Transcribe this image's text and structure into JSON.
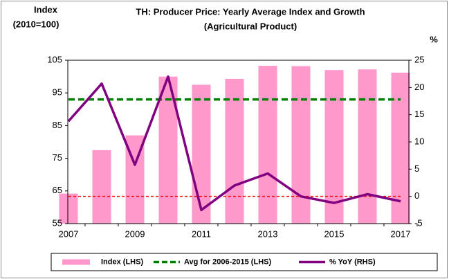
{
  "chart_data": {
    "type": "bar_line",
    "title": "TH: Producer Price: Yearly Average Index and Growth",
    "subtitle": "(Agricultural Product)",
    "y_label": [
      "Index",
      "(2010=100)"
    ],
    "y2_label": "%",
    "categories": [
      "2007",
      null,
      "2009",
      null,
      "2011",
      null,
      "2013",
      null,
      "2015",
      null,
      "2017"
    ],
    "series": [
      {
        "name": "Index (LHS)",
        "kind": "bar",
        "color": "#ff99cc",
        "axis": "y",
        "values": [
          64.2,
          77.5,
          82,
          100,
          97.5,
          99.3,
          103.3,
          103.2,
          102,
          102.2,
          101.2
        ]
      },
      {
        "name": "Avg for 2006-2015 (LHS)",
        "kind": "hline",
        "color": "#008000",
        "axis": "y",
        "value": 93
      },
      {
        "name": "% YoY (RHS)",
        "kind": "line",
        "color": "#800080",
        "axis": "y2",
        "values": [
          13.8,
          20.7,
          5.8,
          22,
          -2.5,
          2,
          4.2,
          0,
          -1.2,
          0.4,
          -0.9
        ]
      }
    ],
    "reference_line": {
      "axis": "y2",
      "value": 0,
      "color": "#ff0000"
    },
    "ylim": [
      55,
      105
    ],
    "yticks": [
      55,
      65,
      75,
      85,
      95,
      105
    ],
    "y2lim": [
      -5,
      25
    ],
    "y2ticks": [
      -5,
      0,
      5,
      10,
      15,
      20,
      25
    ]
  }
}
